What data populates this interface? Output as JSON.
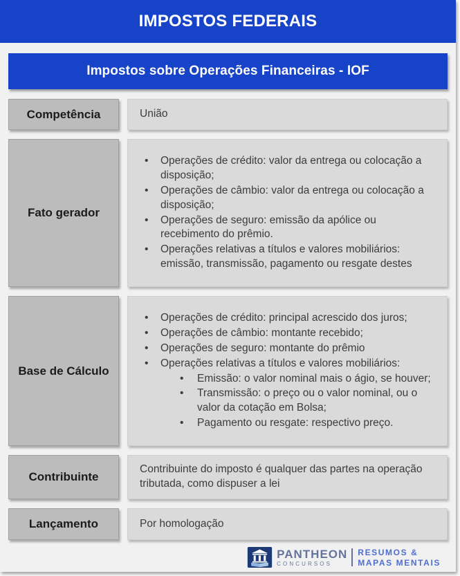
{
  "header": {
    "title": "IMPOSTOS FEDERAIS"
  },
  "subheader": {
    "title": "Impostos sobre Operações Financeiras - IOF"
  },
  "rows": [
    {
      "label": "Competência",
      "text": "União"
    },
    {
      "label": "Fato gerador",
      "items": [
        "Operações de crédito: valor da entrega ou colocação a disposição;",
        "Operações de câmbio: valor da entrega ou colocação a disposição;",
        "Operações de seguro: emissão da apólice ou recebimento do prêmio.",
        "Operações relativas a títulos e valores mobiliários: emissão, transmissão, pagamento ou resgate destes"
      ]
    },
    {
      "label": "Base de Cálculo",
      "items": [
        "Operações de crédito: principal acrescido dos juros;",
        "Operações de câmbio: montante recebido;",
        "Operações de seguro: montante do prêmio",
        {
          "text": "Operações relativas a títulos e valores mobiliários:",
          "sub": [
            "Emissão: o valor nominal mais o ágio, se houver;",
            "Transmissão: o preço ou o valor nominal, ou o valor da cotação em Bolsa;",
            "Pagamento ou resgate: respectivo preço."
          ]
        }
      ]
    },
    {
      "label": "Contribuinte",
      "text": "Contribuinte do imposto é qualquer das partes na operação tributada, como dispuser a lei"
    },
    {
      "label": "Lançamento",
      "text": "Por homologação"
    }
  ],
  "footer": {
    "logo_icon": "pantheon-temple-icon",
    "brand_name": "PANTHEON",
    "brand_sub": "CONCURSOS",
    "tagline_line1": "RESUMOS &",
    "tagline_line2": "MAPAS MENTAIS"
  },
  "colors": {
    "accent_blue": "#1743c8",
    "label_gray": "#bcbcbc",
    "content_gray": "#dadada",
    "page_bg": "#f1f1f2",
    "text_dark": "#3c3c3c",
    "logo_navy": "#1d3a74",
    "logo_slate": "#64749b",
    "logo_blue": "#4e6ed0"
  }
}
